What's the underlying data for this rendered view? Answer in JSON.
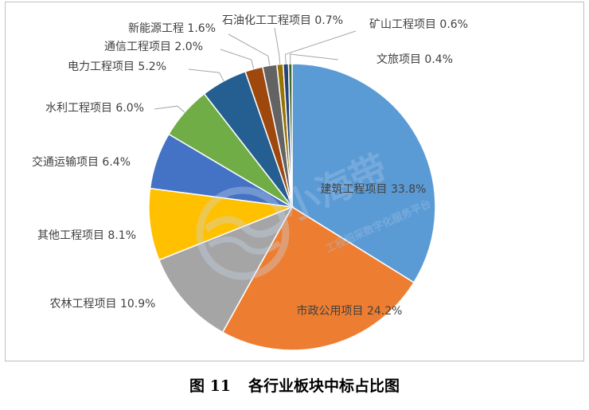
{
  "chart_data": {
    "type": "pie",
    "categories": [
      "建筑工程项目",
      "市政公用项目",
      "农林工程项目",
      "其他工程项目",
      "交通运输项目",
      "水利工程项目",
      "电力工程项目",
      "通信工程项目",
      "新能源工程",
      "石油化工工程项目",
      "矿山工程项目",
      "文旅项目"
    ],
    "values": [
      33.8,
      24.2,
      10.9,
      8.1,
      6.4,
      6.0,
      5.2,
      2.0,
      1.6,
      0.7,
      0.6,
      0.4
    ],
    "value_labels": [
      "33.8%",
      "24.2%",
      "10.9%",
      "8.1%",
      "6.4%",
      "6.0%",
      "5.2%",
      "2.0%",
      "1.6%",
      "0.7%",
      "0.6%",
      "0.4%"
    ],
    "colors": [
      "#5b9bd5",
      "#ed7d31",
      "#a5a5a5",
      "#ffc000",
      "#4472c4",
      "#70ad47",
      "#255e91",
      "#9e480e",
      "#636363",
      "#997300",
      "#264478",
      "#43682b"
    ],
    "title": "",
    "legend": "none"
  },
  "caption": {
    "number": "图 11",
    "text": "各行业板块中标占比图"
  },
  "watermark": {
    "brand": "小海带",
    "tagline": "工程招采数字化服务平台"
  }
}
